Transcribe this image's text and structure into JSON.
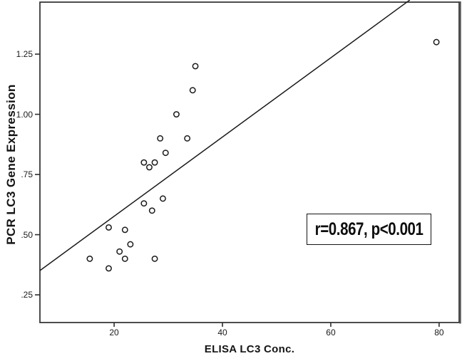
{
  "figure": {
    "background_color": "#ffffff",
    "frame_color": "#2e2e2e",
    "data_color": "#1a1a1a"
  },
  "chart_data": {
    "type": "scatter",
    "title": "",
    "xlabel": "ELISA LC3 Conc.",
    "ylabel": "PCR LC3 Gene Expression",
    "annotation": "r=0.867, p<0.001",
    "legend": "none",
    "grid": false,
    "marker_style": "open-circle",
    "xlim": [
      6.3,
      83.7
    ],
    "ylim": [
      0.135,
      1.466
    ],
    "x_ticks": [
      {
        "label": "20",
        "value": 20
      },
      {
        "label": "40",
        "value": 40
      },
      {
        "label": "60",
        "value": 60
      },
      {
        "label": "80",
        "value": 80
      }
    ],
    "y_ticks": [
      {
        "label": ".25",
        "value": 0.25
      },
      {
        "label": ".50",
        "value": 0.5
      },
      {
        "label": ".75",
        "value": 0.75
      },
      {
        "label": "1.00",
        "value": 1.0
      },
      {
        "label": "1.25",
        "value": 1.25
      }
    ],
    "points": [
      [
        15.5,
        0.4
      ],
      [
        19,
        0.36
      ],
      [
        19,
        0.53
      ],
      [
        21,
        0.43
      ],
      [
        22,
        0.4
      ],
      [
        22,
        0.52
      ],
      [
        23,
        0.46
      ],
      [
        25.5,
        0.63
      ],
      [
        25.5,
        0.8
      ],
      [
        26.5,
        0.78
      ],
      [
        27,
        0.6
      ],
      [
        27.5,
        0.4
      ],
      [
        27.5,
        0.8
      ],
      [
        28.5,
        0.9
      ],
      [
        29,
        0.65
      ],
      [
        29.5,
        0.84
      ],
      [
        31.5,
        1.0
      ],
      [
        33.5,
        0.9
      ],
      [
        34.5,
        1.1
      ],
      [
        35,
        1.2
      ],
      [
        79.5,
        1.3
      ]
    ],
    "regression_line": {
      "slope": 0.0165,
      "intercept": 0.247,
      "x1": 6.3,
      "y1": 0.351,
      "x2": 74.6,
      "y2": 1.475
    }
  }
}
